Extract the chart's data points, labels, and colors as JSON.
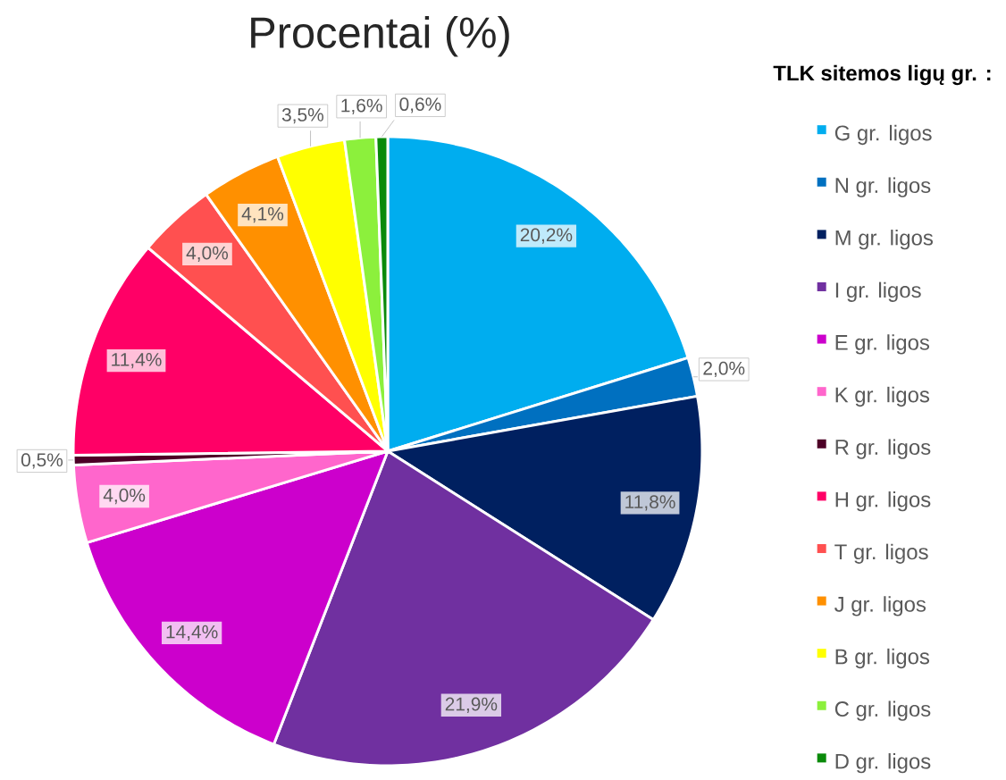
{
  "chart_data": {
    "type": "pie",
    "title": "Procentai (%)",
    "legend_title": "TLK sitemos ligų gr. :",
    "legend": "right",
    "categories": [
      "G gr. ligos",
      "N gr. ligos",
      "M gr. ligos",
      "I gr. ligos",
      "E gr. ligos",
      "K gr. ligos",
      "R gr. ligos",
      "H gr. ligos",
      "T gr. ligos",
      "J gr. ligos",
      "B gr. ligos",
      "C gr. ligos",
      "D gr. ligos"
    ],
    "values": [
      20.2,
      2.0,
      11.8,
      21.9,
      14.4,
      4.0,
      0.5,
      11.4,
      4.0,
      4.1,
      3.5,
      1.6,
      0.6
    ],
    "colors": [
      "#00adef",
      "#0070c0",
      "#002060",
      "#7030a0",
      "#cc00cc",
      "#ff66cc",
      "#4d0026",
      "#ff0066",
      "#ff5050",
      "#ff9000",
      "#ffff00",
      "#8cf03c",
      "#0a8a0a"
    ],
    "value_labels": [
      "20,2%",
      "2,0%",
      "11,8%",
      "21,9%",
      "14,4%",
      "4,0%",
      "0,5%",
      "11,4%",
      "4,0%",
      "4,1%",
      "3,5%",
      "1,6%",
      "0,6%"
    ]
  }
}
